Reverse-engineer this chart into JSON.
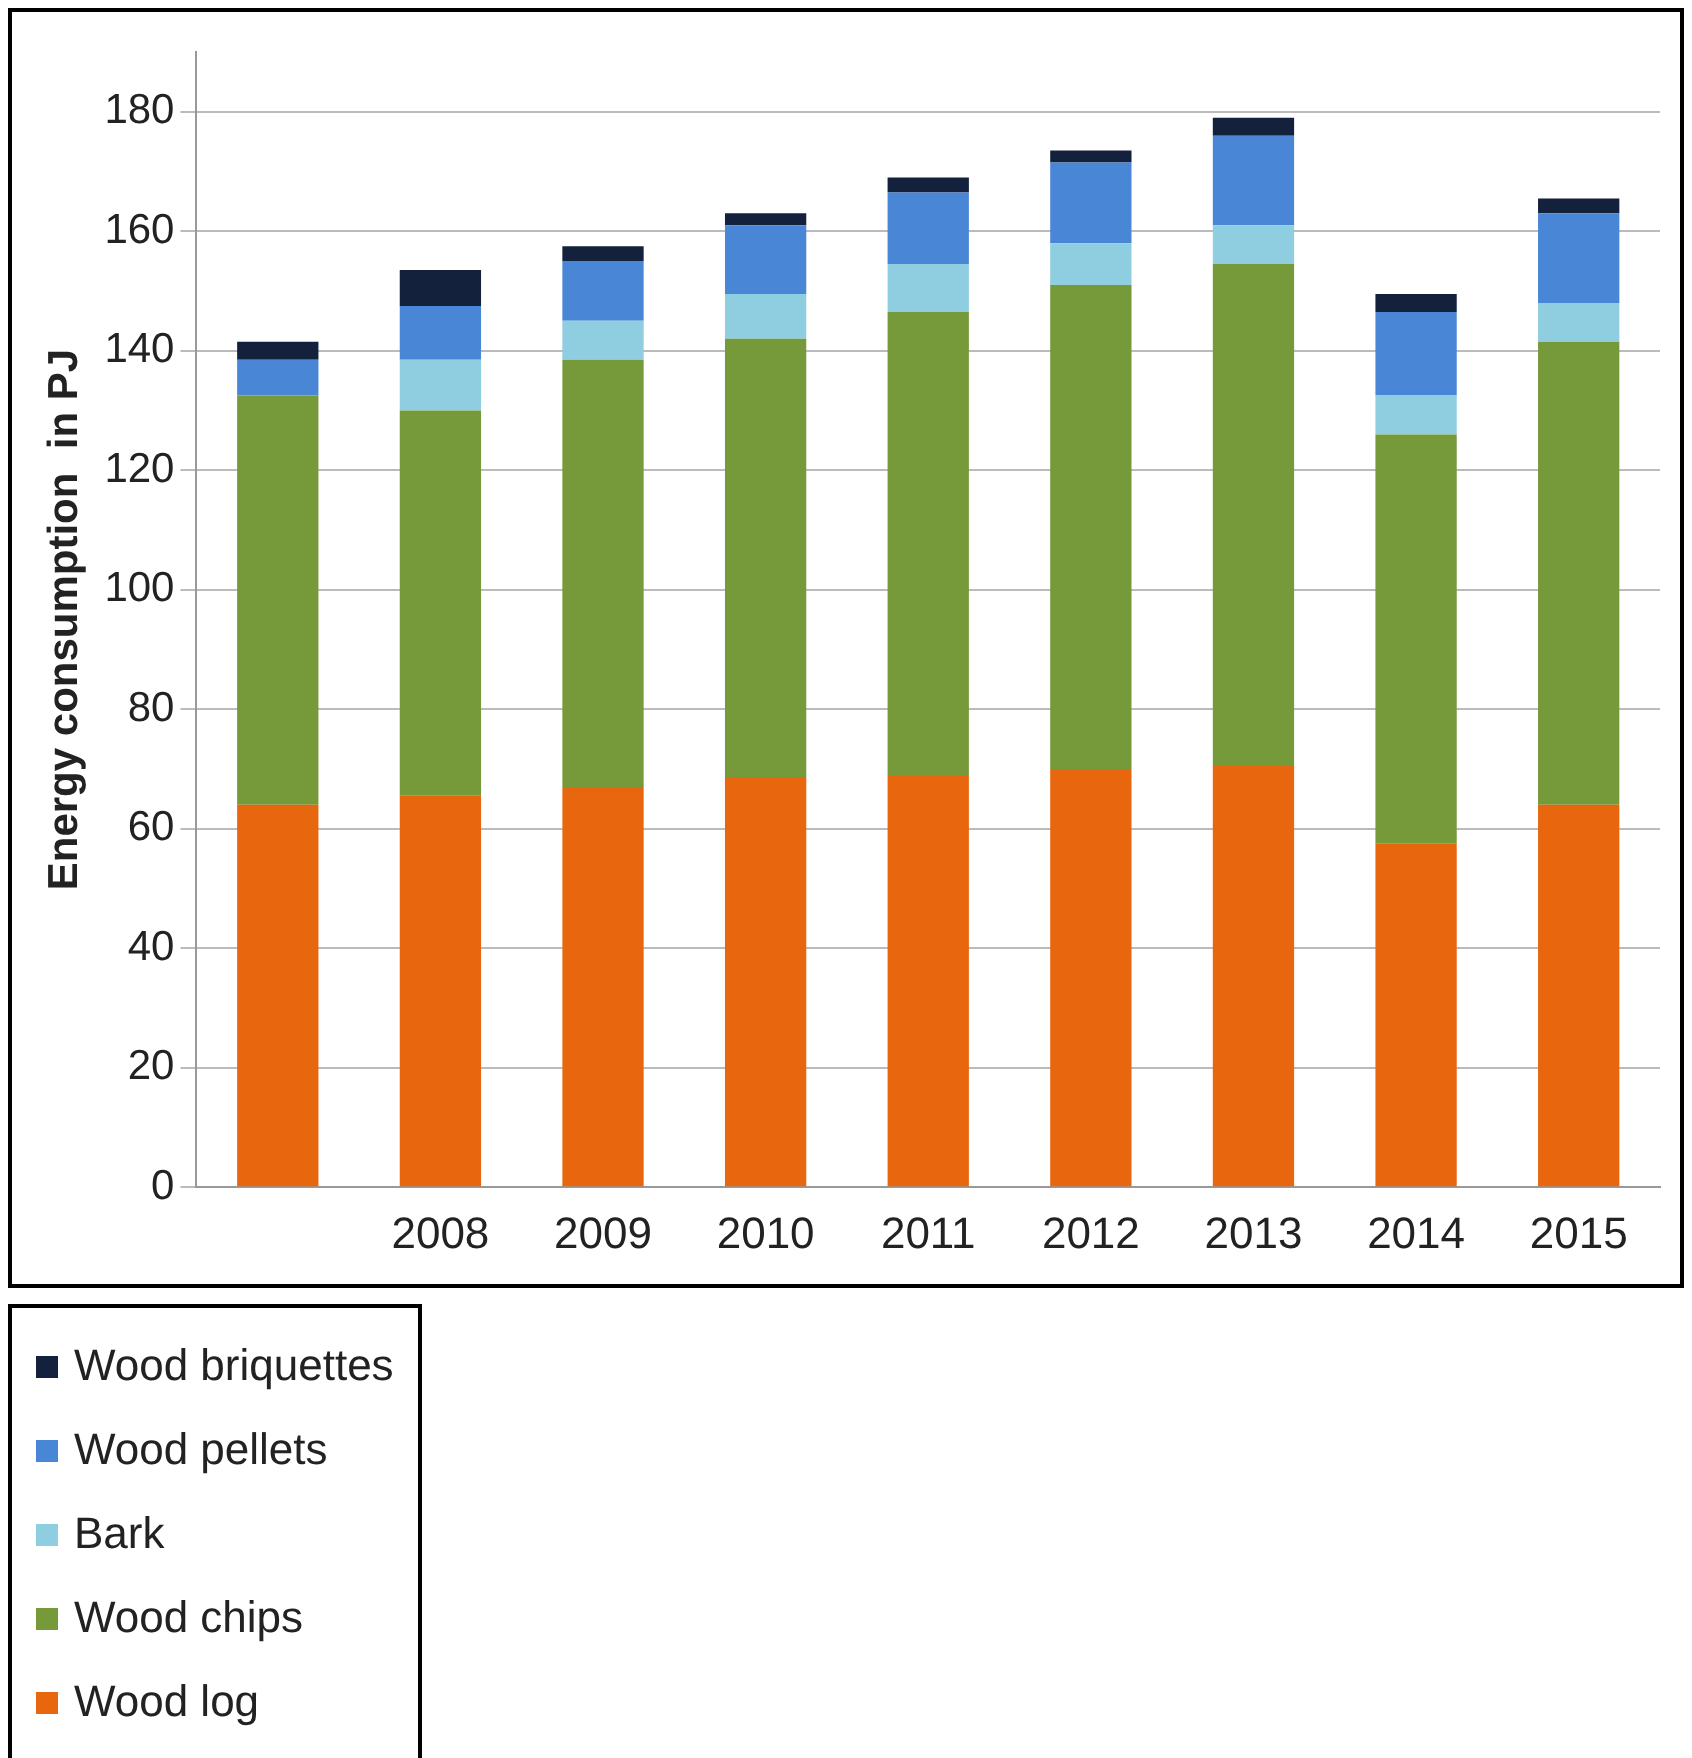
{
  "chart_data": {
    "type": "bar",
    "stacked": true,
    "ylabel": "Energy consumption  in PJ",
    "categories": [
      null,
      "2008",
      "2009",
      "2010",
      "2011",
      "2012",
      "2013",
      "2014",
      "2015"
    ],
    "series": [
      {
        "name": "Wood log",
        "color": "#e8670e",
        "values": [
          64,
          65.5,
          67,
          68.5,
          69,
          70,
          70.5,
          57.5,
          64
        ]
      },
      {
        "name": "Wood chips",
        "color": "#76993a",
        "values": [
          68.5,
          64.5,
          71.5,
          73.5,
          77.5,
          81,
          84,
          68.5,
          77.5
        ]
      },
      {
        "name": "Bark",
        "color": "#8fcde0",
        "values": [
          0,
          8.5,
          6.5,
          7.5,
          8,
          7,
          6.5,
          6.5,
          6.5
        ]
      },
      {
        "name": "Wood pellets",
        "color": "#4a86d6",
        "values": [
          6,
          9,
          10,
          11.5,
          12,
          13.5,
          15,
          14,
          15
        ]
      },
      {
        "name": "Wood briquettes",
        "color": "#14213d",
        "values": [
          3,
          6,
          2.5,
          2,
          2.5,
          2,
          3,
          3,
          2.5
        ]
      }
    ],
    "ylim": [
      0,
      190
    ],
    "yticks": [
      0,
      20,
      40,
      60,
      80,
      100,
      120,
      140,
      160,
      180
    ],
    "grid": "y",
    "legend": "bottom left"
  }
}
